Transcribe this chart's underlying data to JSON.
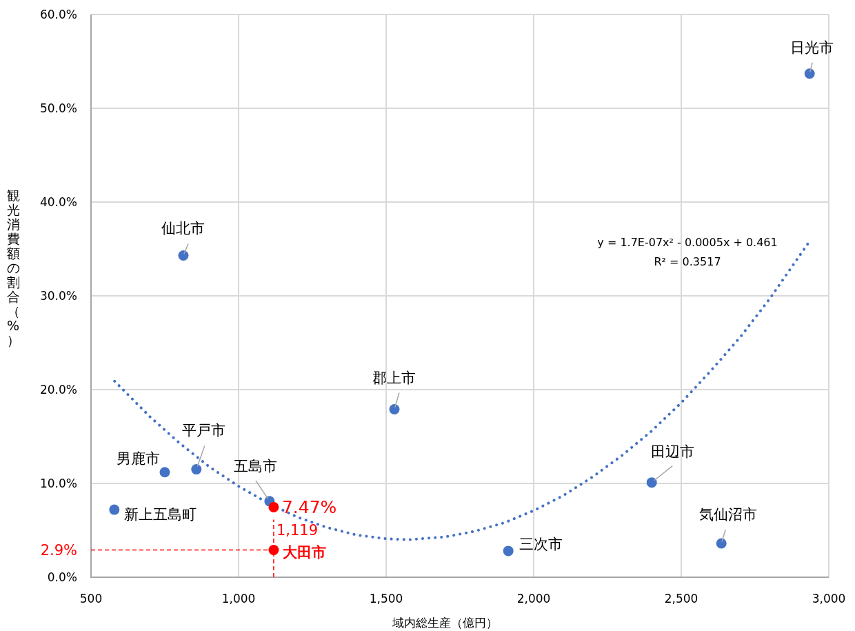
{
  "chart_data": {
    "type": "scatter",
    "xlabel": "域内総生産（億円）",
    "ylabel": "観光消費額の割合（%）",
    "xlim": [
      500,
      3000
    ],
    "ylim": [
      0,
      60
    ],
    "xticks": [
      500,
      {
        "value": 1000,
        "label": "1,000"
      },
      {
        "value": 1500,
        "label": "1,500"
      },
      {
        "value": 2000,
        "label": "2,000"
      },
      {
        "value": 2500,
        "label": "2,500"
      },
      {
        "value": 3000,
        "label": "3,000"
      }
    ],
    "yticks": [
      {
        "value": 0,
        "label": "0.0%"
      },
      {
        "value": 10,
        "label": "10.0%"
      },
      {
        "value": 20,
        "label": "20.0%"
      },
      {
        "value": 30,
        "label": "30.0%"
      },
      {
        "value": 40,
        "label": "40.0%"
      },
      {
        "value": 50,
        "label": "50.0%"
      },
      {
        "value": 60,
        "label": "60.0%"
      }
    ],
    "grid": true,
    "marker": "circle",
    "series": [
      {
        "type": "scatter",
        "color": "#4472c4",
        "x": [
          2935,
          813,
          1528,
          857,
          750,
          1105,
          579,
          1914,
          2400,
          2636
        ],
        "values": [
          53.7,
          34.3,
          17.9,
          11.5,
          11.2,
          8.1,
          7.2,
          2.8,
          10.1,
          3.6
        ]
      },
      {
        "type": "scatter",
        "color": "#ff0000",
        "x": [
          1119,
          1119
        ],
        "values": [
          7.47,
          2.9
        ],
        "value_labels": [
          "7.47%",
          null
        ]
      },
      {
        "type": "line",
        "color": "#4472c4",
        "line_style": "dotted",
        "marker": "none",
        "x": [
          580,
          700,
          800,
          900,
          1000,
          1100,
          1200,
          1300,
          1400,
          1500,
          1575,
          1700,
          1800,
          1900,
          2000,
          2100,
          2200,
          2300,
          2400,
          2500,
          2600,
          2700,
          2800,
          2930
        ],
        "values": [
          20.9,
          17.1,
          14.3,
          11.8,
          9.7,
          7.9,
          6.4,
          5.3,
          4.5,
          4.1,
          4.0,
          4.3,
          4.9,
          5.8,
          7.1,
          8.7,
          10.7,
          13.0,
          15.6,
          18.6,
          22.0,
          25.6,
          29.7,
          35.6
        ]
      }
    ],
    "ref_lines": [
      {
        "axis": "y",
        "value": 2.9,
        "label": "2.9%",
        "color": "#ff0000",
        "line_style": "dashed"
      },
      {
        "axis": "x",
        "value": 1119,
        "label": "1,119",
        "color": "#ff0000",
        "line_style": "dashed"
      }
    ],
    "annotations": [
      {
        "text": "日光市",
        "x": 2935,
        "y": 53.7
      },
      {
        "text": "仙北市",
        "x": 813,
        "y": 34.3
      },
      {
        "text": "郡上市",
        "x": 1528,
        "y": 17.9
      },
      {
        "text": "平戸市",
        "x": 857,
        "y": 11.5
      },
      {
        "text": "男鹿市",
        "x": 750,
        "y": 11.2
      },
      {
        "text": "五島市",
        "x": 1105,
        "y": 8.1
      },
      {
        "text": "新上五島町",
        "x": 579,
        "y": 7.2
      },
      {
        "text": "三次市",
        "x": 1914,
        "y": 2.8
      },
      {
        "text": "田辺市",
        "x": 2400,
        "y": 10.1
      },
      {
        "text": "気仙沼市",
        "x": 2636,
        "y": 3.6
      },
      {
        "text": "大田市",
        "x": 1119,
        "y": 2.9
      },
      "y = 1.7E-07x² - 0.0005x + 0.461",
      "R² = 0.3517"
    ]
  }
}
